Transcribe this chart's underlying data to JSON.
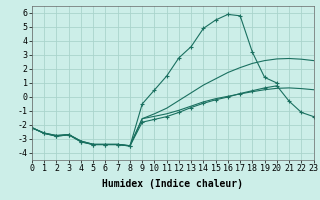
{
  "bg_color": "#cceee8",
  "grid_color": "#aad4cc",
  "line_color": "#1a7060",
  "xlabel": "Humidex (Indice chaleur)",
  "xlabel_fontsize": 7,
  "tick_fontsize": 6,
  "xlim": [
    0,
    23
  ],
  "ylim": [
    -4.5,
    6.5
  ],
  "yticks": [
    -4,
    -3,
    -2,
    -1,
    0,
    1,
    2,
    3,
    4,
    5,
    6
  ],
  "xticks": [
    0,
    1,
    2,
    3,
    4,
    5,
    6,
    7,
    8,
    9,
    10,
    11,
    12,
    13,
    14,
    15,
    16,
    17,
    18,
    19,
    20,
    21,
    22,
    23
  ],
  "series": [
    {
      "x": [
        0,
        1,
        2,
        3,
        4,
        5,
        6,
        7,
        8,
        9,
        10,
        11,
        12,
        13,
        14,
        15,
        16,
        17,
        18,
        19,
        20,
        21,
        22,
        23
      ],
      "y": [
        -2.2,
        -2.6,
        -2.8,
        -2.7,
        -3.2,
        -3.4,
        -3.4,
        -3.4,
        -3.5,
        -1.8,
        -1.6,
        -1.4,
        -1.1,
        -0.75,
        -0.45,
        -0.2,
        0.0,
        0.25,
        0.45,
        0.65,
        0.8,
        -0.3,
        -1.1,
        -1.4
      ],
      "has_markers": true
    },
    {
      "x": [
        0,
        1,
        2,
        3,
        4,
        5,
        6,
        7,
        8,
        9,
        10,
        11,
        12,
        13,
        14,
        15,
        16,
        17,
        18,
        19,
        20
      ],
      "y": [
        -2.2,
        -2.6,
        -2.8,
        -2.7,
        -3.2,
        -3.4,
        -3.4,
        -3.4,
        -3.5,
        -0.5,
        0.5,
        1.5,
        2.8,
        3.6,
        4.9,
        5.5,
        5.9,
        5.8,
        3.2,
        1.4,
        1.0
      ],
      "has_markers": true
    },
    {
      "x": [
        0,
        1,
        2,
        3,
        4,
        5,
        6,
        7,
        8,
        9,
        10,
        11,
        12,
        13,
        14,
        15,
        16,
        17,
        18,
        19,
        20,
        21,
        22,
        23
      ],
      "y": [
        -2.2,
        -2.58,
        -2.75,
        -2.68,
        -3.15,
        -3.38,
        -3.38,
        -3.38,
        -3.48,
        -1.55,
        -1.2,
        -0.8,
        -0.25,
        0.3,
        0.85,
        1.3,
        1.75,
        2.1,
        2.4,
        2.6,
        2.72,
        2.75,
        2.7,
        2.6
      ],
      "has_markers": false
    },
    {
      "x": [
        0,
        1,
        2,
        3,
        4,
        5,
        6,
        7,
        8,
        9,
        10,
        11,
        12,
        13,
        14,
        15,
        16,
        17,
        18,
        19,
        20,
        21,
        22,
        23
      ],
      "y": [
        -2.2,
        -2.58,
        -2.75,
        -2.68,
        -3.15,
        -3.38,
        -3.38,
        -3.38,
        -3.48,
        -1.55,
        -1.38,
        -1.2,
        -0.95,
        -0.65,
        -0.35,
        -0.12,
        0.05,
        0.22,
        0.38,
        0.52,
        0.62,
        0.65,
        0.6,
        0.52
      ],
      "has_markers": false
    }
  ]
}
